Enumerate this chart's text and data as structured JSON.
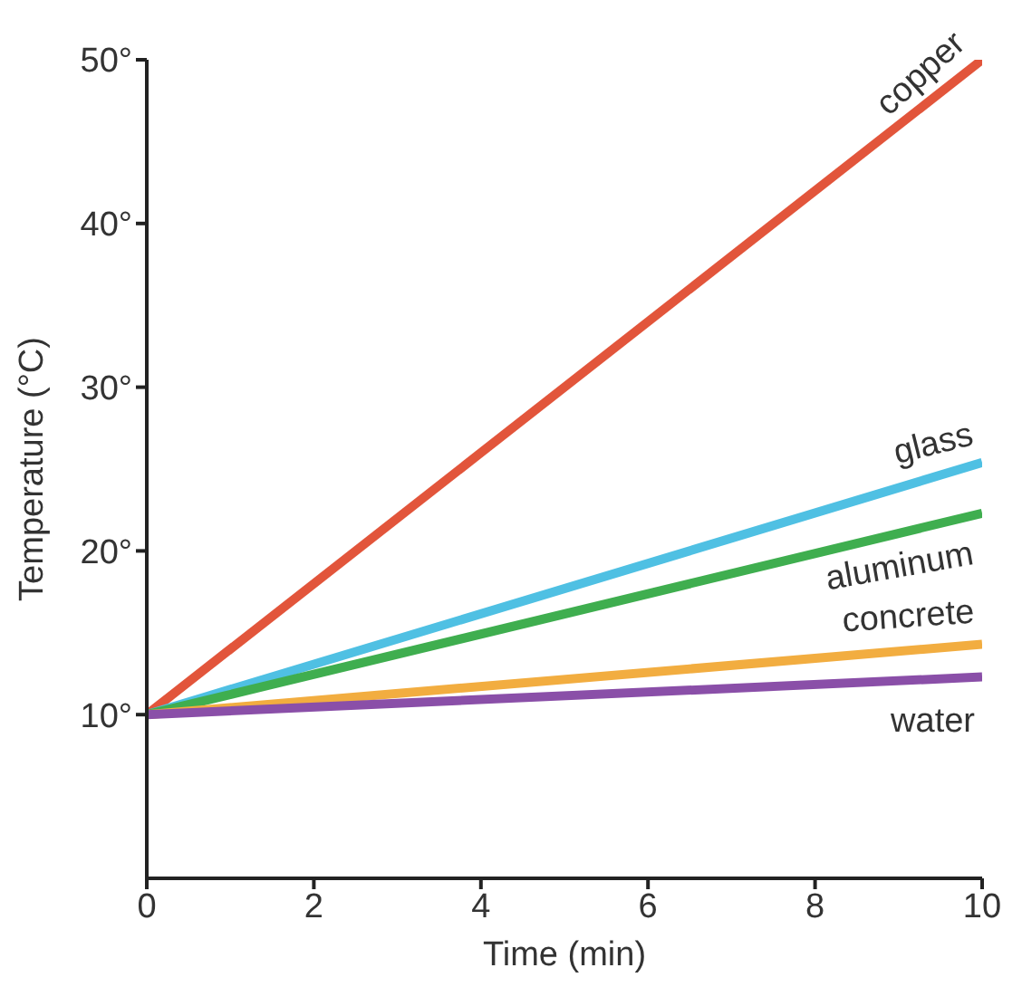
{
  "chart_data": {
    "type": "line",
    "xlabel": "Time (min)",
    "ylabel": "Temperature (°C)",
    "x": [
      0,
      10
    ],
    "series": [
      {
        "name": "copper",
        "color": "#e2553b",
        "values": [
          10,
          50
        ]
      },
      {
        "name": "glass",
        "color": "#4fc0e3",
        "values": [
          10,
          25.4
        ]
      },
      {
        "name": "aluminum",
        "color": "#3fae4f",
        "values": [
          10,
          22.3
        ]
      },
      {
        "name": "concrete",
        "color": "#f2ad40",
        "values": [
          10,
          14.3
        ]
      },
      {
        "name": "water",
        "color": "#8a4fa8",
        "values": [
          10,
          12.3
        ]
      }
    ],
    "xlim": [
      0,
      10
    ],
    "xticks": [
      0,
      2,
      4,
      6,
      8,
      10
    ],
    "ylim": [
      0,
      50
    ],
    "yticks": [
      {
        "value": 10,
        "label": "10°"
      },
      {
        "value": 20,
        "label": "20°"
      },
      {
        "value": 30,
        "label": "30°"
      },
      {
        "value": 40,
        "label": "40°"
      },
      {
        "value": 50,
        "label": "50°"
      }
    ],
    "grid": false,
    "legend": false,
    "marker": "none",
    "line_style": "solid"
  }
}
